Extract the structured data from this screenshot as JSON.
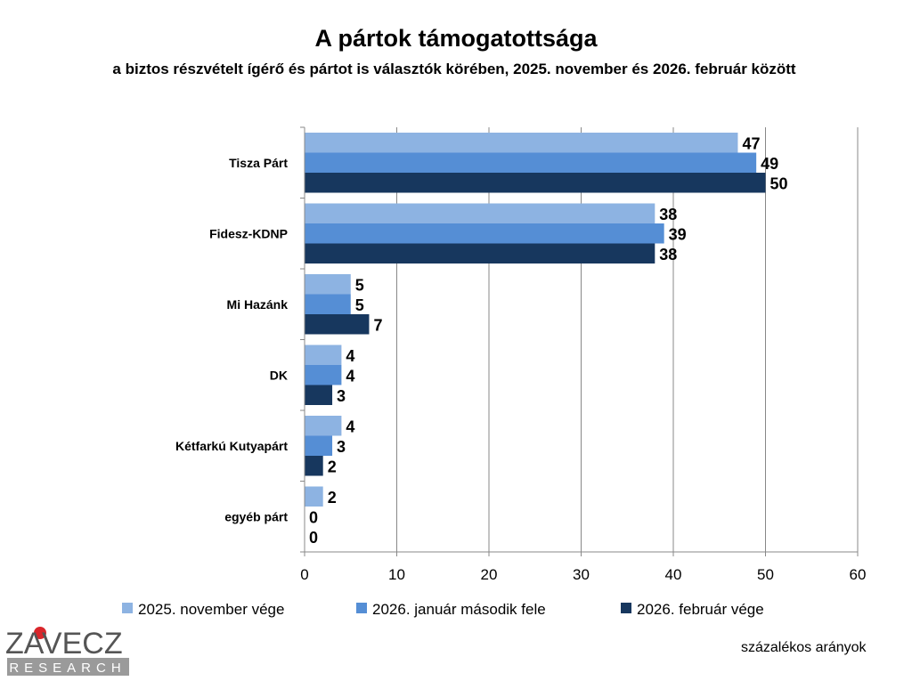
{
  "chart_data": {
    "type": "bar",
    "orientation": "horizontal",
    "title": "A pártok támogatottsága",
    "subtitle": "a biztos részvételt ígérő és pártot is választók körében, 2025. november és 2026. február között",
    "categories": [
      "Tisza Párt",
      "Fidesz-KDNP",
      "Mi Hazánk",
      "DK",
      "Kétfarkú Kutyapárt",
      "egyéb párt"
    ],
    "series": [
      {
        "name": "2025. november vége",
        "color": "#8DB3E2",
        "values": [
          47,
          38,
          5,
          4,
          4,
          2
        ]
      },
      {
        "name": "2026. január második fele",
        "color": "#558ED5",
        "values": [
          49,
          39,
          5,
          4,
          3,
          0
        ]
      },
      {
        "name": "2026. február vége",
        "color": "#17375E",
        "values": [
          50,
          38,
          7,
          3,
          2,
          0
        ]
      }
    ],
    "xlim": [
      0,
      60
    ],
    "xticks": [
      0,
      10,
      20,
      30,
      40,
      50,
      60
    ],
    "grid": true,
    "legend": "bottom",
    "note": "százalékos arányok"
  },
  "logo": {
    "name": "ZÁVECZ",
    "sub": "RESEARCH"
  }
}
